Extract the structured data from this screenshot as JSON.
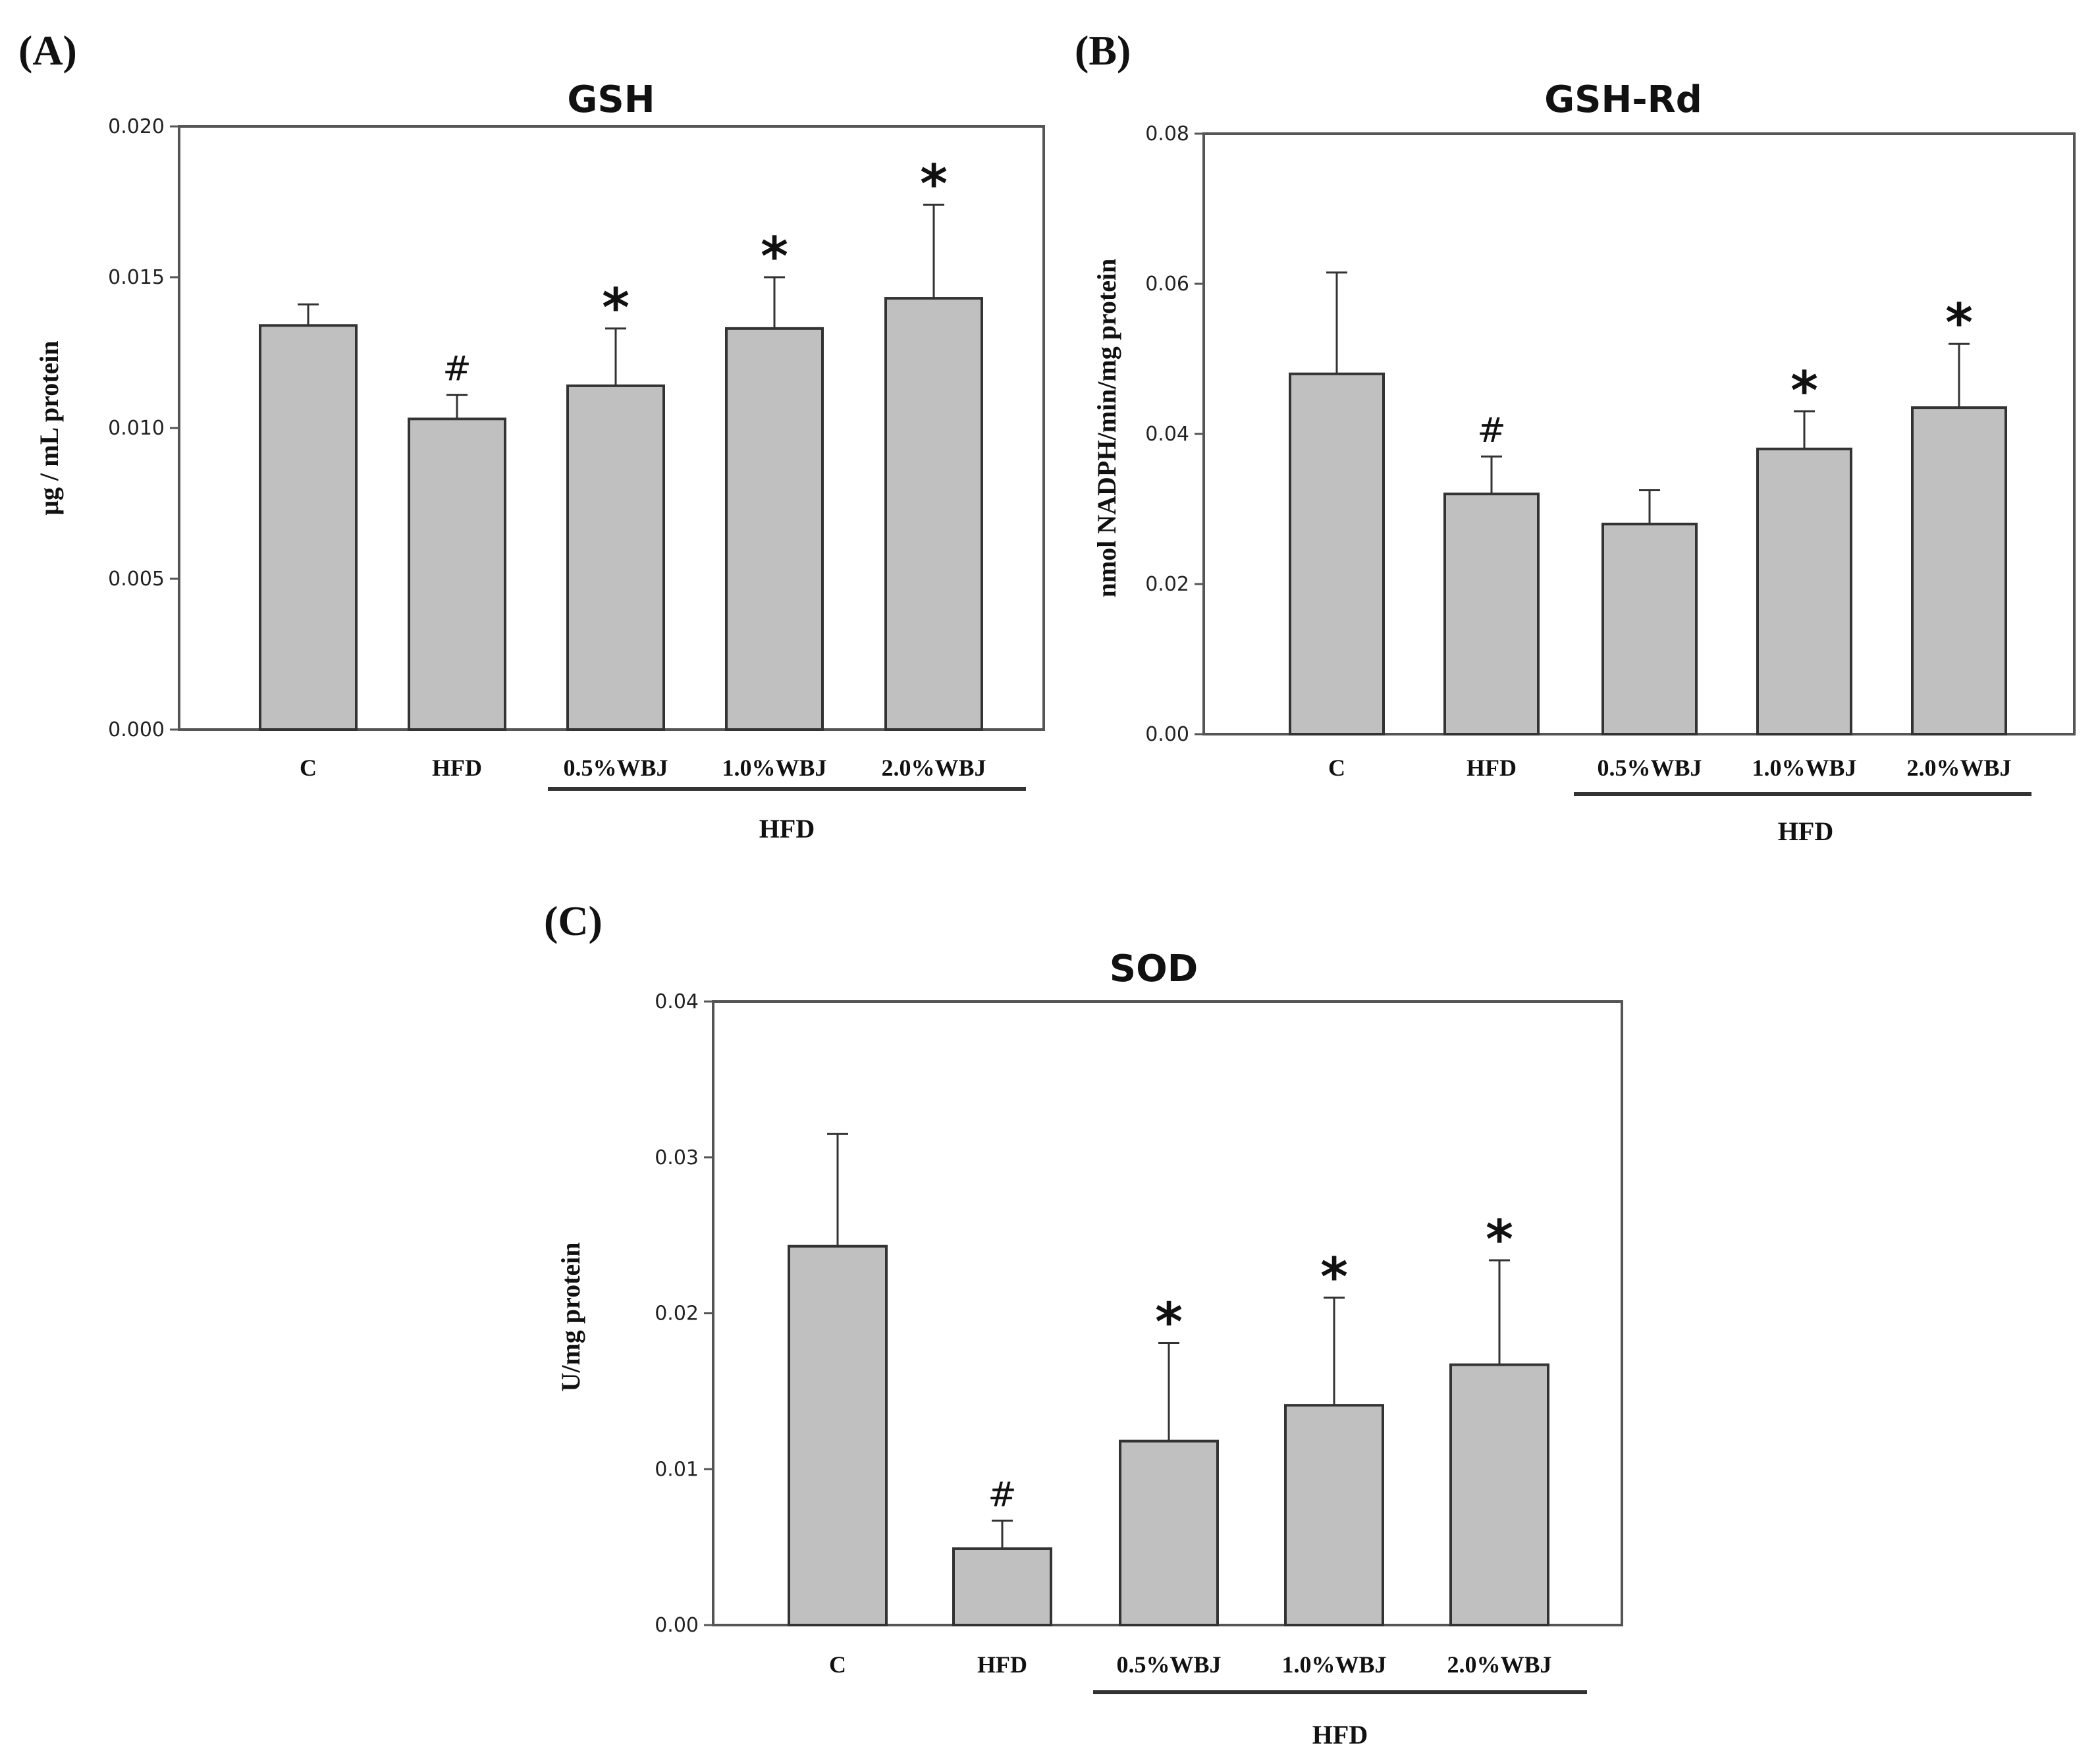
{
  "chart_data": [
    {
      "panel": "(A)",
      "type": "bar",
      "title": "GSH",
      "ylabel": "μg / mL protein",
      "xlabel": "",
      "ylim": [
        0,
        0.02
      ],
      "yticks": [
        "0.000",
        "0.005",
        "0.010",
        "0.015",
        "0.020"
      ],
      "categories": [
        "C",
        "HFD",
        "0.5%WBJ",
        "1.0%WBJ",
        "2.0%WBJ"
      ],
      "values": [
        0.0134,
        0.0103,
        0.0114,
        0.0133,
        0.0143
      ],
      "errors": [
        0.0007,
        0.0008,
        0.0019,
        0.0017,
        0.0031
      ],
      "markers": [
        "",
        "#",
        "*",
        "*",
        "*"
      ],
      "group_label": "HFD"
    },
    {
      "panel": "(B)",
      "type": "bar",
      "title": "GSH-Rd",
      "ylabel": "nmol NADPH/min/mg protein",
      "xlabel": "",
      "ylim": [
        0,
        0.08
      ],
      "yticks": [
        "0.00",
        "0.02",
        "0.04",
        "0.06",
        "0.08"
      ],
      "categories": [
        "C",
        "HFD",
        "0.5%WBJ",
        "1.0%WBJ",
        "2.0%WBJ"
      ],
      "values": [
        0.048,
        0.032,
        0.028,
        0.038,
        0.0435
      ],
      "errors": [
        0.0135,
        0.005,
        0.0045,
        0.005,
        0.0085
      ],
      "markers": [
        "",
        "#",
        "",
        "*",
        "*"
      ],
      "group_label": "HFD"
    },
    {
      "panel": "(C)",
      "type": "bar",
      "title": "SOD",
      "ylabel": "U/mg  protein",
      "xlabel": "",
      "ylim": [
        0,
        0.04
      ],
      "yticks": [
        "0.00",
        "0.01",
        "0.02",
        "0.03",
        "0.04"
      ],
      "categories": [
        "C",
        "HFD",
        "0.5%WBJ",
        "1.0%WBJ",
        "2.0%WBJ"
      ],
      "values": [
        0.0243,
        0.0049,
        0.0118,
        0.0141,
        0.0167
      ],
      "errors": [
        0.0072,
        0.0018,
        0.0063,
        0.0069,
        0.0067
      ],
      "markers": [
        "",
        "#",
        "*",
        "*",
        "*"
      ],
      "group_label": "HFD"
    }
  ]
}
